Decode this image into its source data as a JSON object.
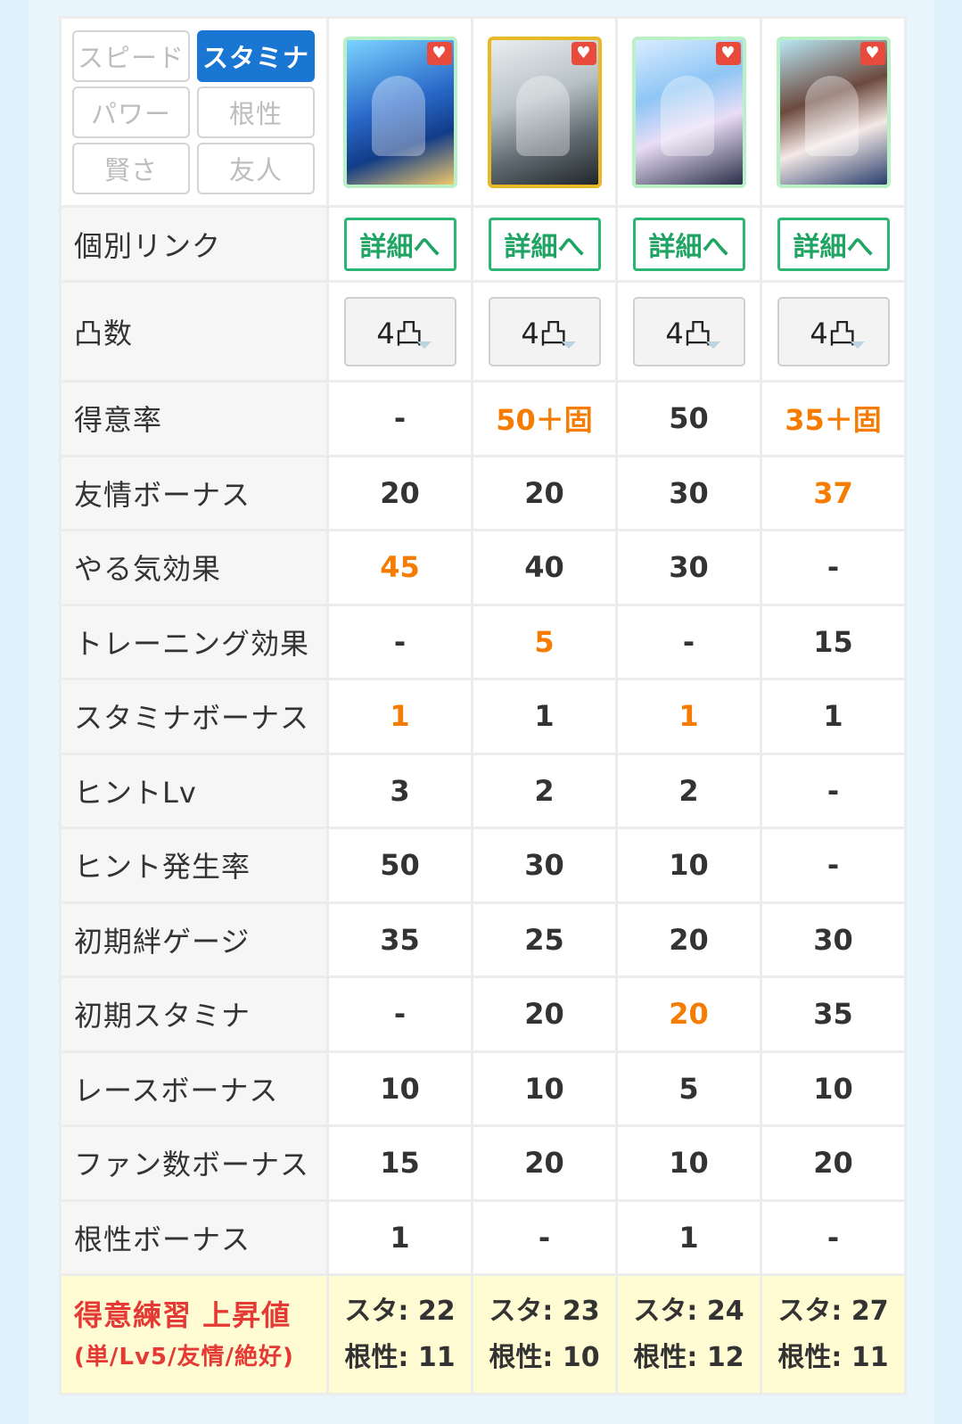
{
  "filters": [
    "スピード",
    "スタミナ",
    "パワー",
    "根性",
    "賢さ",
    "友人"
  ],
  "active_filter": "スタミナ",
  "cards": [
    {
      "heart": "♥"
    },
    {
      "heart": "♥"
    },
    {
      "heart": "♥"
    },
    {
      "heart": "♥"
    }
  ],
  "link_row": {
    "label": "個別リンク",
    "button": "詳細へ"
  },
  "totsu_row": {
    "label": "凸数",
    "values": [
      "4凸",
      "4凸",
      "4凸",
      "4凸"
    ]
  },
  "rows": [
    {
      "label": "得意率",
      "values": [
        "-",
        "50＋固",
        "50",
        "35＋固"
      ],
      "highlight": [
        false,
        true,
        false,
        true
      ]
    },
    {
      "label": "友情ボーナス",
      "values": [
        "20",
        "20",
        "30",
        "37"
      ],
      "highlight": [
        false,
        false,
        false,
        true
      ]
    },
    {
      "label": "やる気効果",
      "values": [
        "45",
        "40",
        "30",
        "-"
      ],
      "highlight": [
        true,
        false,
        false,
        false
      ]
    },
    {
      "label": "トレーニング効果",
      "values": [
        "-",
        "5",
        "-",
        "15"
      ],
      "highlight": [
        false,
        true,
        false,
        false
      ]
    },
    {
      "label": "スタミナボーナス",
      "values": [
        "1",
        "1",
        "1",
        "1"
      ],
      "highlight": [
        true,
        false,
        true,
        false
      ]
    },
    {
      "label": "ヒントLv",
      "values": [
        "3",
        "2",
        "2",
        "-"
      ],
      "highlight": [
        false,
        false,
        false,
        false
      ]
    },
    {
      "label": "ヒント発生率",
      "values": [
        "50",
        "30",
        "10",
        "-"
      ],
      "highlight": [
        false,
        false,
        false,
        false
      ]
    },
    {
      "label": "初期絆ゲージ",
      "values": [
        "35",
        "25",
        "20",
        "30"
      ],
      "highlight": [
        false,
        false,
        false,
        false
      ]
    },
    {
      "label": "初期スタミナ",
      "values": [
        "-",
        "20",
        "20",
        "35"
      ],
      "highlight": [
        false,
        false,
        true,
        false
      ]
    },
    {
      "label": "レースボーナス",
      "values": [
        "10",
        "10",
        "5",
        "10"
      ],
      "highlight": [
        false,
        false,
        false,
        false
      ]
    },
    {
      "label": "ファン数ボーナス",
      "values": [
        "15",
        "20",
        "10",
        "20"
      ],
      "highlight": [
        false,
        false,
        false,
        false
      ]
    },
    {
      "label": "根性ボーナス",
      "values": [
        "1",
        "-",
        "1",
        "-"
      ],
      "highlight": [
        false,
        false,
        false,
        false
      ]
    }
  ],
  "footer": {
    "title": "得意練習 上昇値",
    "subtitle": "(単/Lv5/友情/絶好)",
    "values": [
      {
        "line1": "スタ: 22",
        "line2": "根性: 11"
      },
      {
        "line1": "スタ: 23",
        "line2": "根性: 10"
      },
      {
        "line1": "スタ: 24",
        "line2": "根性: 12"
      },
      {
        "line1": "スタ: 27",
        "line2": "根性: 11"
      }
    ]
  },
  "colors": {
    "accent": "#1976d2",
    "highlight": "#f57c00",
    "link_green": "#1fa463",
    "footer_bg": "#fffbd2",
    "footer_red": "#e53935"
  }
}
